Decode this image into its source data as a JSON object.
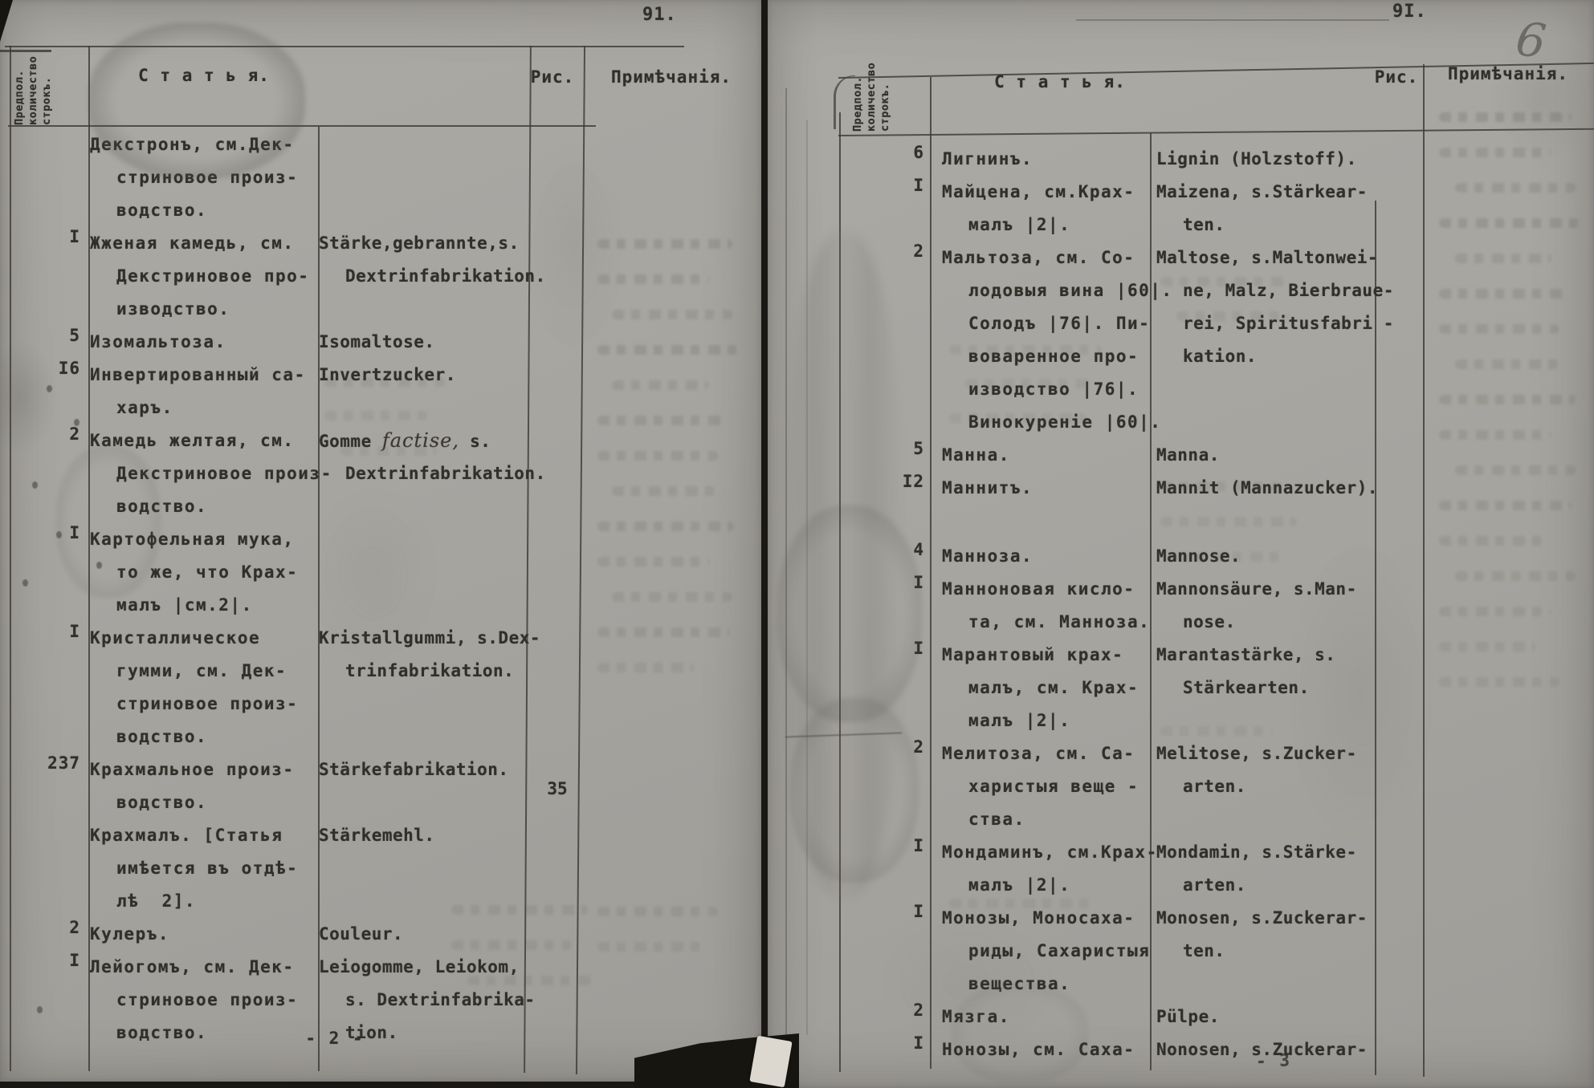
{
  "document_title": "Typewritten Russian-German trade article index, scanned double page",
  "pages": [
    {
      "side": "left",
      "page_corner_number": "91.",
      "columns": {
        "qty_header": "Предпол.\nколичество\nстрокъ.",
        "article_header": "С т а т ь я.",
        "figure_header": "Рис.",
        "notes_header": "Примѣчанія."
      },
      "entries": [
        {
          "qty": "",
          "ru": [
            "Декстронъ, см.Дек-",
            "стриновое произ-",
            "водство."
          ],
          "de": [],
          "fig": ""
        },
        {
          "qty": "I",
          "ru": [
            "Жженая камедь, см.",
            "Декстриновое про-",
            "изводство."
          ],
          "de": [
            "Stärke,gebrannte,s.",
            "Dextrinfabrikation."
          ],
          "fig": ""
        },
        {
          "qty": "5",
          "ru": [
            "Изомальтоза."
          ],
          "de": [
            "Isomaltose."
          ],
          "fig": ""
        },
        {
          "qty": "I6",
          "ru": [
            "Инвертированный са-",
            "харъ."
          ],
          "de": [
            "Invertzucker."
          ],
          "fig": ""
        },
        {
          "qty": "2",
          "ru": [
            "Камедь желтая, см.",
            "Декстриновое произ-",
            "водство."
          ],
          "de": [
            "Gomme [[factise,]] s.",
            "Dextrinfabrikation."
          ],
          "fig": ""
        },
        {
          "qty": "I",
          "ru": [
            "Картофельная мука,",
            "то же, что Крах-",
            "малъ |см.2|."
          ],
          "de": [],
          "fig": ""
        },
        {
          "qty": "I",
          "ru": [
            "Кристаллическое",
            "гумми, см. Дек-",
            "стриновое произ-",
            "водство."
          ],
          "de": [
            "Kristallgummi, s.Dex-",
            "trinfabrikation."
          ],
          "fig": ""
        },
        {
          "qty": "237",
          "ru": [
            "Крахмальное произ-",
            "водство."
          ],
          "de": [
            "Stärkefabrikation."
          ],
          "fig": "35"
        },
        {
          "qty": "",
          "ru": [
            "Крахмалъ. [Статья",
            "имѣется въ отдѣ-",
            "лѣ  2]."
          ],
          "de": [
            "Stärkemehl."
          ],
          "fig": ""
        },
        {
          "qty": "2",
          "ru": [
            "Кулеръ."
          ],
          "de": [
            "Couleur."
          ],
          "fig": ""
        },
        {
          "qty": "I",
          "ru": [
            "Лейогомъ, см. Дек-",
            "стриновое произ-",
            "водство."
          ],
          "de": [
            "Leiogomme, Leiokom,",
            "s. Dextrinfabrika-",
            "tion."
          ],
          "fig": ""
        }
      ],
      "footer": "- 2 -"
    },
    {
      "side": "right",
      "page_corner_number": "9I.",
      "handwritten_number": "6",
      "columns": {
        "qty_header": "Предпол.\nколичество\nстрокъ.",
        "article_header": "С т а т ь я.",
        "figure_header": "Рис.",
        "notes_header": "Примѣчанія."
      },
      "entries": [
        {
          "qty": "6",
          "ru": [
            "Лигнинъ."
          ],
          "de": [
            "Lignin (Holzstoff)."
          ],
          "fig": ""
        },
        {
          "qty": "I",
          "ru": [
            "Майцена, см.Крах-",
            "малъ |2|."
          ],
          "de": [
            "Maizena, s.Stärkear-",
            "ten."
          ],
          "fig": ""
        },
        {
          "qty": "2",
          "ru": [
            "Мальтоза, см. Со-",
            "лодовыя вина |60|.",
            "Солодъ |76|. Пи-",
            "воваренное про-",
            "изводство |76|.",
            "Винокуреніе |60|."
          ],
          "de": [
            "Maltose, s.Maltonwei-",
            "ne, Malz, Bierbraue-",
            "rei, Spiritusfabri -",
            "kation."
          ],
          "fig": ""
        },
        {
          "qty": "5",
          "ru": [
            "Манна."
          ],
          "de": [
            "Manna."
          ],
          "fig": ""
        },
        {
          "qty": "I2",
          "ru": [
            "Маннитъ."
          ],
          "de": [
            "Mannit (Mannazucker)."
          ],
          "fig": ""
        },
        {
          "qty": "4",
          "gap_before": true,
          "ru": [
            "Манноза."
          ],
          "de": [
            "Mannose."
          ],
          "fig": ""
        },
        {
          "qty": "I",
          "ru": [
            "Манноновая кисло-",
            "та, см. Манноза."
          ],
          "de": [
            "Mannonsäure, s.Man-",
            "nose."
          ],
          "fig": ""
        },
        {
          "qty": "I",
          "ru": [
            "Марантовый крах-",
            "малъ, см. Крах-",
            "малъ |2|."
          ],
          "de": [
            "Marantastärke, s.",
            "Stärkearten."
          ],
          "fig": ""
        },
        {
          "qty": "2",
          "ru": [
            "Мелитоза, см. Са-",
            "харистыя веще -",
            "ства."
          ],
          "de": [
            "Melitose, s.Zucker-",
            "arten."
          ],
          "fig": ""
        },
        {
          "qty": "I",
          "ru": [
            "Мондаминъ, см.Крах-",
            "малъ |2|."
          ],
          "de": [
            "Mondamin, s.Stärke-",
            "arten."
          ],
          "fig": ""
        },
        {
          "qty": "I",
          "ru": [
            "Монозы, Моносаха-",
            "риды, Сахаристыя",
            "вещества."
          ],
          "de": [
            "Monosen, s.Zuckerar-",
            "ten."
          ],
          "fig": ""
        },
        {
          "qty": "2",
          "ru": [
            "Мязга."
          ],
          "de": [
            "Pülpe."
          ],
          "fig": ""
        },
        {
          "qty": "I",
          "ru": [
            "Нонозы, см. Саха-"
          ],
          "de": [
            "Nonosen, s.Zuckerar-"
          ],
          "fig": ""
        }
      ],
      "footer": "- 3"
    }
  ]
}
